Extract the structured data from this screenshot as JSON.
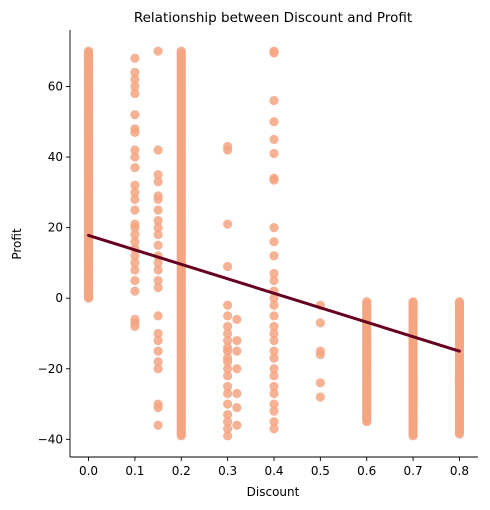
{
  "chart_data": {
    "type": "scatter",
    "title": "Relationship between Discount and Profit",
    "xlabel": "Discount",
    "ylabel": "Profit",
    "xlim": [
      -0.04,
      0.84
    ],
    "ylim": [
      -45,
      76
    ],
    "xticks": [
      0.0,
      0.1,
      0.2,
      0.3,
      0.4,
      0.5,
      0.6,
      0.7,
      0.8
    ],
    "xtick_labels": [
      "0.0",
      "0.1",
      "0.2",
      "0.3",
      "0.4",
      "0.5",
      "0.6",
      "0.7",
      "0.8"
    ],
    "yticks": [
      -40,
      -20,
      0,
      20,
      40,
      60
    ],
    "ytick_labels": [
      "−40",
      "−20",
      "0",
      "20",
      "40",
      "60"
    ],
    "grid": false,
    "point_color": "#f4a582",
    "line_color": "#67001f",
    "regression": {
      "x": [
        0.0,
        0.8
      ],
      "y": [
        17.8,
        -15.0
      ]
    },
    "scatter_groups": [
      {
        "x": 0.0,
        "y_range": [
          0,
          70
        ],
        "dense": true,
        "count": 220
      },
      {
        "x": 0.1,
        "y": [
          68,
          64,
          62,
          60,
          58,
          52,
          48,
          47,
          42,
          40,
          37,
          32,
          30,
          28,
          25,
          21,
          20,
          18,
          16,
          14,
          12,
          10,
          8,
          5,
          2,
          -6,
          -7,
          -8
        ]
      },
      {
        "x": 0.15,
        "y": [
          70,
          42,
          35,
          33,
          29,
          28,
          25,
          22,
          20,
          18,
          15,
          12,
          10,
          8,
          5,
          3,
          -5,
          -10,
          -12,
          -15,
          -18,
          -20,
          -30,
          -31,
          -36
        ]
      },
      {
        "x": 0.2,
        "y_range": [
          -39,
          70
        ],
        "dense": true,
        "count": 220
      },
      {
        "x": 0.3,
        "y": [
          43,
          42,
          21,
          9,
          -2,
          -5,
          -8,
          -10,
          -12,
          -14,
          -15,
          -17,
          -18,
          -20,
          -22,
          -25,
          -27,
          -30,
          -33,
          -35,
          -37,
          -39
        ]
      },
      {
        "x": 0.32,
        "y": [
          -6,
          -12,
          -15,
          -20,
          -27,
          -31,
          -36
        ]
      },
      {
        "x": 0.4,
        "y": [
          70,
          69.5,
          56,
          50,
          45,
          41,
          34,
          33.5,
          20,
          16,
          12,
          7,
          5,
          2,
          0,
          -2,
          -5,
          -8,
          -10,
          -12,
          -15,
          -17,
          -20,
          -22,
          -25,
          -27,
          -30,
          -32,
          -35,
          -37
        ]
      },
      {
        "x": 0.5,
        "y": [
          -2,
          -7,
          -15,
          -16,
          -24,
          -28
        ]
      },
      {
        "x": 0.6,
        "y_range": [
          -35,
          -1
        ],
        "dense": true,
        "count": 70
      },
      {
        "x": 0.7,
        "y_range": [
          -39,
          -1
        ],
        "dense": true,
        "count": 90
      },
      {
        "x": 0.8,
        "y_range": [
          -38.5,
          -1
        ],
        "dense": true,
        "count": 80
      }
    ]
  }
}
